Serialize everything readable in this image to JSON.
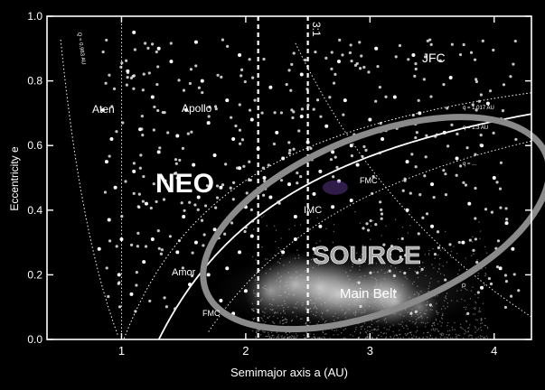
{
  "chart_data": {
    "type": "scatter",
    "xlabel": "Semimajor axis a (AU)",
    "ylabel": "Eccentricity e",
    "xlim": [
      0.4,
      4.3
    ],
    "ylim": [
      0.0,
      1.0
    ],
    "xticks": [
      1,
      2,
      3,
      4
    ],
    "yticks": [
      0.0,
      0.2,
      0.4,
      0.6,
      0.8,
      1.0
    ],
    "grid": false,
    "colors": {
      "background": "#000000",
      "points": "#ffffff",
      "source_ellipse": "#8a8a8a",
      "resonance_lines": "#ffffff",
      "fmc_marker": "#6a3ea0"
    },
    "resonances": [
      {
        "label": "3:1",
        "a": 2.5
      },
      {
        "label": "",
        "a": 2.1
      }
    ],
    "curve_labels": {
      "q_left": "Q = 0.983 AU",
      "q_1017": "q = 1.017 AU",
      "q_13": "q = 1.3 AU",
      "q_low": "q = ...",
      "q_bottom": "Q..."
    },
    "region_labels": {
      "neo": "NEO",
      "source": "SOURCE",
      "main_belt": "Main Belt",
      "jfc": "JFC",
      "aten": "Aten",
      "apollo": "Apollo",
      "amor": "Amor",
      "imc": "IMC",
      "fmc_upper": "FMC",
      "fmc_lower": "FMC"
    },
    "source_region": {
      "center_a": 3.05,
      "center_e": 0.36,
      "width_a": 2.95,
      "height_e": 0.54,
      "tilt_deg": -22
    },
    "main_belt_density": [
      {
        "a": 2.2,
        "e": 0.15,
        "weight": 2
      },
      {
        "a": 2.4,
        "e": 0.17,
        "weight": 3
      },
      {
        "a": 2.6,
        "e": 0.16,
        "weight": 3
      },
      {
        "a": 2.75,
        "e": 0.14,
        "weight": 3
      },
      {
        "a": 2.9,
        "e": 0.13,
        "weight": 2
      },
      {
        "a": 3.1,
        "e": 0.14,
        "weight": 3
      },
      {
        "a": 3.2,
        "e": 0.12,
        "weight": 2
      },
      {
        "a": 3.4,
        "e": 0.1,
        "weight": 1
      }
    ],
    "neo_points": [
      {
        "a": 0.85,
        "e": 0.71
      },
      {
        "a": 0.92,
        "e": 0.62
      },
      {
        "a": 0.95,
        "e": 0.47
      },
      {
        "a": 0.9,
        "e": 0.37
      },
      {
        "a": 1.0,
        "e": 0.31
      },
      {
        "a": 0.88,
        "e": 0.55
      },
      {
        "a": 1.05,
        "e": 0.83
      },
      {
        "a": 1.1,
        "e": 0.52
      },
      {
        "a": 1.15,
        "e": 0.65
      },
      {
        "a": 1.2,
        "e": 0.42
      },
      {
        "a": 1.25,
        "e": 0.75
      },
      {
        "a": 1.3,
        "e": 0.58
      },
      {
        "a": 1.35,
        "e": 0.49
      },
      {
        "a": 1.4,
        "e": 0.86
      },
      {
        "a": 1.45,
        "e": 0.63
      },
      {
        "a": 1.5,
        "e": 0.38
      },
      {
        "a": 1.52,
        "e": 0.71
      },
      {
        "a": 1.58,
        "e": 0.54
      },
      {
        "a": 1.62,
        "e": 0.44
      },
      {
        "a": 1.65,
        "e": 0.8
      },
      {
        "a": 1.7,
        "e": 0.67
      },
      {
        "a": 1.75,
        "e": 0.57
      },
      {
        "a": 1.8,
        "e": 0.47
      },
      {
        "a": 1.85,
        "e": 0.74
      },
      {
        "a": 1.9,
        "e": 0.62
      },
      {
        "a": 1.95,
        "e": 0.53
      },
      {
        "a": 2.0,
        "e": 0.41
      },
      {
        "a": 2.05,
        "e": 0.68
      },
      {
        "a": 2.1,
        "e": 0.59
      },
      {
        "a": 2.15,
        "e": 0.5
      },
      {
        "a": 2.2,
        "e": 0.44
      },
      {
        "a": 2.25,
        "e": 0.64
      },
      {
        "a": 2.3,
        "e": 0.56
      },
      {
        "a": 2.35,
        "e": 0.48
      },
      {
        "a": 2.4,
        "e": 0.38
      },
      {
        "a": 2.45,
        "e": 0.69
      },
      {
        "a": 2.5,
        "e": 0.61
      },
      {
        "a": 2.55,
        "e": 0.45
      },
      {
        "a": 2.6,
        "e": 0.52
      },
      {
        "a": 2.65,
        "e": 0.66
      },
      {
        "a": 2.7,
        "e": 0.58
      },
      {
        "a": 2.75,
        "e": 0.49
      },
      {
        "a": 2.8,
        "e": 0.74
      },
      {
        "a": 2.85,
        "e": 0.6
      },
      {
        "a": 2.9,
        "e": 0.54
      },
      {
        "a": 3.0,
        "e": 0.68
      },
      {
        "a": 3.1,
        "e": 0.62
      },
      {
        "a": 3.2,
        "e": 0.75
      },
      {
        "a": 3.3,
        "e": 0.55
      },
      {
        "a": 3.4,
        "e": 0.7
      },
      {
        "a": 3.5,
        "e": 0.48
      },
      {
        "a": 3.6,
        "e": 0.64
      },
      {
        "a": 3.7,
        "e": 0.56
      },
      {
        "a": 3.8,
        "e": 0.42
      },
      {
        "a": 3.9,
        "e": 0.6
      },
      {
        "a": 4.0,
        "e": 0.5
      },
      {
        "a": 4.1,
        "e": 0.36
      },
      {
        "a": 3.95,
        "e": 0.73
      },
      {
        "a": 3.65,
        "e": 0.81
      },
      {
        "a": 3.35,
        "e": 0.88
      },
      {
        "a": 3.05,
        "e": 0.9
      },
      {
        "a": 2.75,
        "e": 0.86
      },
      {
        "a": 2.45,
        "e": 0.82
      },
      {
        "a": 2.2,
        "e": 0.78
      },
      {
        "a": 1.95,
        "e": 0.88
      },
      {
        "a": 1.6,
        "e": 0.92
      },
      {
        "a": 1.3,
        "e": 0.9
      },
      {
        "a": 1.1,
        "e": 0.95
      },
      {
        "a": 1.25,
        "e": 0.31
      },
      {
        "a": 1.45,
        "e": 0.27
      },
      {
        "a": 1.6,
        "e": 0.3
      },
      {
        "a": 1.75,
        "e": 0.34
      },
      {
        "a": 1.85,
        "e": 0.22
      },
      {
        "a": 1.95,
        "e": 0.27
      },
      {
        "a": 2.05,
        "e": 0.32
      },
      {
        "a": 1.7,
        "e": 0.2
      },
      {
        "a": 1.55,
        "e": 0.17
      },
      {
        "a": 1.8,
        "e": 0.12
      },
      {
        "a": 2.0,
        "e": 0.15
      },
      {
        "a": 1.9,
        "e": 0.08
      },
      {
        "a": 2.3,
        "e": 0.27
      },
      {
        "a": 2.4,
        "e": 0.31
      },
      {
        "a": 2.6,
        "e": 0.35
      },
      {
        "a": 2.7,
        "e": 0.41
      },
      {
        "a": 2.55,
        "e": 0.28
      },
      {
        "a": 2.85,
        "e": 0.43
      },
      {
        "a": 3.3,
        "e": 0.4
      },
      {
        "a": 3.5,
        "e": 0.35
      },
      {
        "a": 3.75,
        "e": 0.3
      },
      {
        "a": 4.05,
        "e": 0.22
      },
      {
        "a": 3.9,
        "e": 0.16
      },
      {
        "a": 4.15,
        "e": 0.28
      },
      {
        "a": 0.98,
        "e": 0.2
      },
      {
        "a": 1.08,
        "e": 0.14
      },
      {
        "a": 1.18,
        "e": 0.24
      },
      {
        "a": 0.82,
        "e": 0.28
      }
    ]
  }
}
